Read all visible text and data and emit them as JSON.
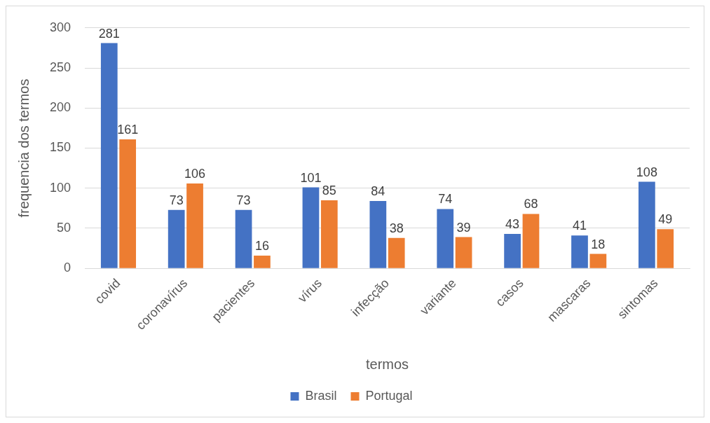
{
  "chart_data": {
    "type": "bar",
    "xlabel": "termos",
    "ylabel": "frequencia dos termos",
    "categories": [
      "covid",
      "coronavírus",
      "pacientes",
      "vírus",
      "infecção",
      "variante",
      "casos",
      "mascaras",
      "sintomas"
    ],
    "series": [
      {
        "name": "Brasil",
        "color": "#4472c4",
        "values": [
          281,
          73,
          73,
          101,
          84,
          74,
          43,
          41,
          108
        ]
      },
      {
        "name": "Portugal",
        "color": "#ed7d31",
        "values": [
          161,
          106,
          16,
          85,
          38,
          39,
          68,
          18,
          49
        ]
      }
    ],
    "ylim": [
      0,
      300
    ],
    "yticks": [
      0,
      50,
      100,
      150,
      200,
      250,
      300
    ],
    "grid": "y",
    "legend": "bottom",
    "data_labels": true
  }
}
